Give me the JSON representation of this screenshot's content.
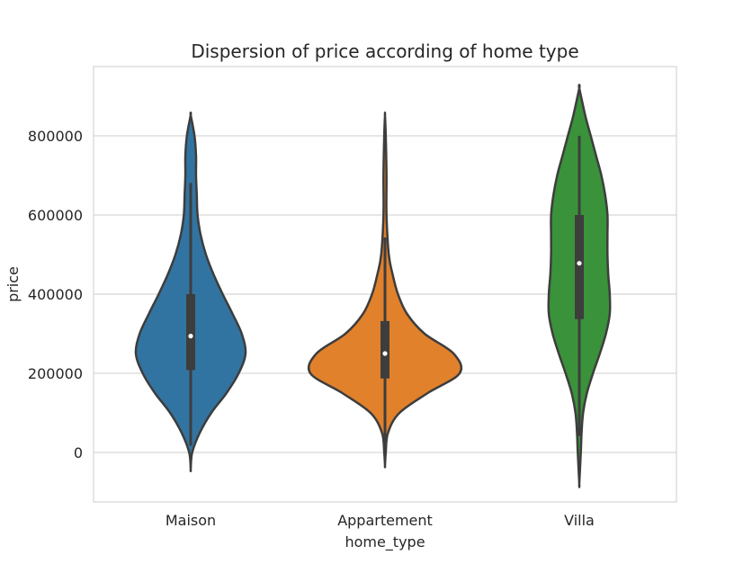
{
  "chart_data": {
    "type": "violin",
    "title": "Dispersion of price according of home type",
    "xlabel": "home_type",
    "ylabel": "price",
    "ylim": [
      -125000,
      975000
    ],
    "yticks": [
      0,
      200000,
      400000,
      600000,
      800000
    ],
    "ytick_labels": [
      "0",
      "200000",
      "400000",
      "600000",
      "800000"
    ],
    "grid": true,
    "categories": [
      "Maison",
      "Appartement",
      "Villa"
    ],
    "series": [
      {
        "category": "Maison",
        "color": "#3274a1",
        "min": -42000,
        "max": 852000,
        "q1": 208000,
        "median": 294000,
        "q3": 400000,
        "whisker_low": 20000,
        "whisker_high": 678000,
        "profile": [
          [
            -42000,
            0.0
          ],
          [
            0,
            0.02
          ],
          [
            50000,
            0.12
          ],
          [
            100000,
            0.27
          ],
          [
            150000,
            0.47
          ],
          [
            200000,
            0.63
          ],
          [
            250000,
            0.72
          ],
          [
            300000,
            0.67
          ],
          [
            350000,
            0.55
          ],
          [
            400000,
            0.42
          ],
          [
            450000,
            0.3
          ],
          [
            500000,
            0.2
          ],
          [
            550000,
            0.13
          ],
          [
            600000,
            0.09
          ],
          [
            650000,
            0.08
          ],
          [
            700000,
            0.07
          ],
          [
            750000,
            0.07
          ],
          [
            800000,
            0.05
          ],
          [
            852000,
            0.0
          ]
        ]
      },
      {
        "category": "Appartement",
        "color": "#e1812c",
        "min": -33000,
        "max": 852000,
        "q1": 187000,
        "median": 250000,
        "q3": 332000,
        "whisker_low": 0,
        "whisker_high": 540000,
        "profile": [
          [
            -33000,
            0.0
          ],
          [
            0,
            0.01
          ],
          [
            50000,
            0.04
          ],
          [
            100000,
            0.19
          ],
          [
            150000,
            0.56
          ],
          [
            200000,
            0.98
          ],
          [
            250000,
            0.9
          ],
          [
            300000,
            0.52
          ],
          [
            350000,
            0.29
          ],
          [
            400000,
            0.17
          ],
          [
            450000,
            0.1
          ],
          [
            500000,
            0.05
          ],
          [
            600000,
            0.02
          ],
          [
            700000,
            0.02
          ],
          [
            800000,
            0.01
          ],
          [
            852000,
            0.0
          ]
        ]
      },
      {
        "category": "Villa",
        "color": "#3a923a",
        "min": -78000,
        "max": 920000,
        "q1": 337000,
        "median": 478000,
        "q3": 600000,
        "whisker_low": 45000,
        "whisker_high": 797000,
        "profile": [
          [
            -78000,
            0.0
          ],
          [
            0,
            0.02
          ],
          [
            50000,
            0.03
          ],
          [
            100000,
            0.05
          ],
          [
            150000,
            0.1
          ],
          [
            200000,
            0.18
          ],
          [
            250000,
            0.27
          ],
          [
            300000,
            0.35
          ],
          [
            350000,
            0.4
          ],
          [
            400000,
            0.4
          ],
          [
            450000,
            0.38
          ],
          [
            500000,
            0.37
          ],
          [
            550000,
            0.37
          ],
          [
            600000,
            0.37
          ],
          [
            650000,
            0.34
          ],
          [
            700000,
            0.29
          ],
          [
            750000,
            0.22
          ],
          [
            800000,
            0.15
          ],
          [
            850000,
            0.08
          ],
          [
            920000,
            0.0
          ]
        ]
      }
    ]
  }
}
